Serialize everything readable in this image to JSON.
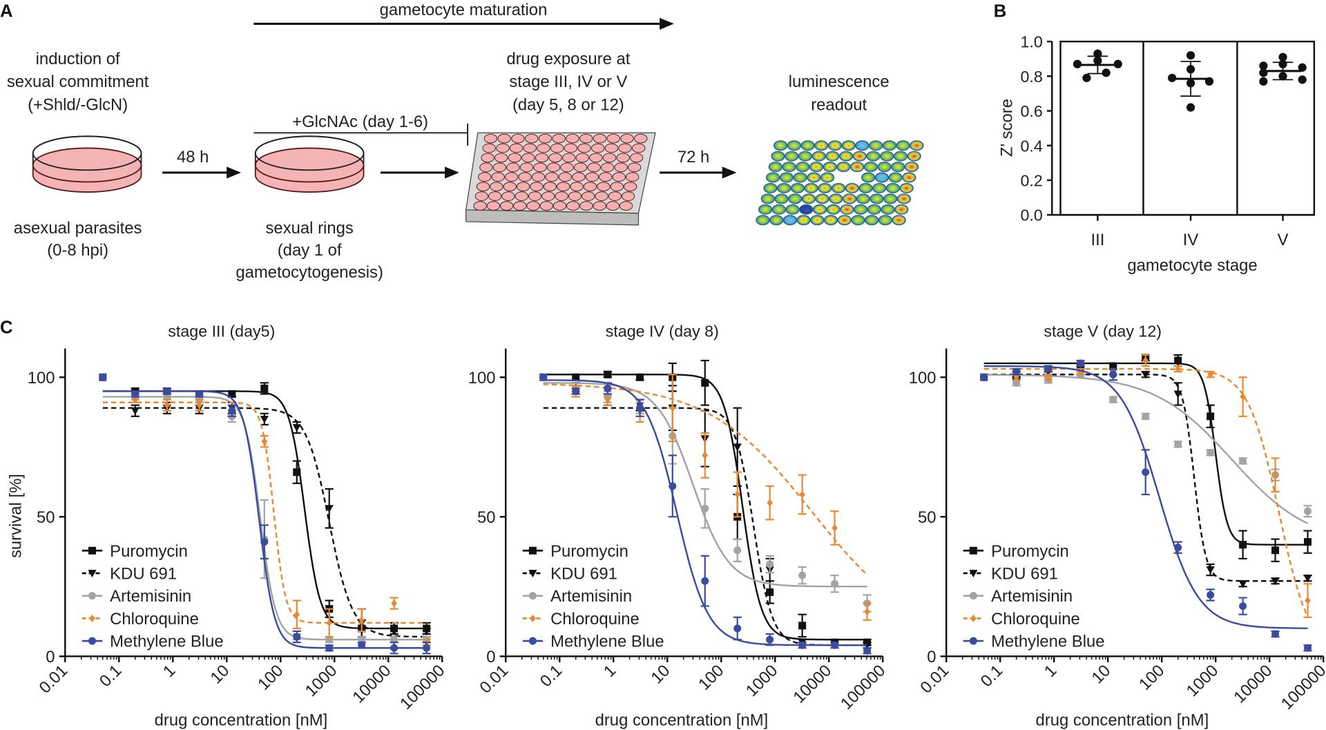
{
  "panel_labels": {
    "a": "A",
    "b": "B",
    "c": "C"
  },
  "panel_a": {
    "maturation_label": "gametocyte maturation",
    "induction_text": [
      "induction of",
      "sexual commitment",
      "(+Shld/-GlcN)"
    ],
    "asexual_text": [
      "asexual parasites",
      "(0-8 hpi)"
    ],
    "arrow_48h": "48 h",
    "glcnac_label": "+GlcNAc (day 1-6)",
    "rings_text": [
      "sexual rings",
      "(day 1 of",
      "gametocytogenesis)"
    ],
    "exposure_text": [
      "drug exposure at",
      "stage III, IV or V",
      "(day 5, 8 or 12)"
    ],
    "arrow_72h": "72 h",
    "readout_text": [
      "luminescence",
      "readout"
    ],
    "dish_color": "#f4b3b5",
    "plate_color": "#d9d9d9"
  },
  "chart_data": [
    {
      "id": "B",
      "type": "scatter",
      "ylabel": "Z' score",
      "xlabel": "gametocyte stage",
      "categories": [
        "III",
        "IV",
        "V"
      ],
      "ylim": [
        0,
        1.0
      ],
      "yticks": [
        "0.0",
        "0.2",
        "0.4",
        "0.6",
        "0.8",
        "1.0"
      ],
      "points": [
        [
          0.93,
          0.89,
          0.87,
          0.87,
          0.82,
          0.79
        ],
        [
          0.92,
          0.84,
          0.79,
          0.76,
          0.77,
          0.62
        ],
        [
          0.91,
          0.87,
          0.86,
          0.85,
          0.82,
          0.8,
          0.77,
          0.78
        ]
      ],
      "mean": [
        0.865,
        0.785,
        0.83
      ],
      "sd": [
        0.05,
        0.1,
        0.05
      ]
    },
    {
      "id": "C1",
      "type": "line",
      "title": "stage III (day5)",
      "xlabel": "drug concentration [nM]",
      "ylabel": "survival [%]",
      "xscale": "log",
      "xticks": [
        "0.01",
        "0.1",
        "1",
        "10",
        "100",
        "1000",
        "10000",
        "100000"
      ],
      "yticks": [
        "0",
        "50",
        "100"
      ],
      "ylim": [
        0,
        110
      ],
      "x": [
        0.05,
        0.2,
        0.78,
        3.1,
        12.5,
        50,
        200,
        800,
        3200,
        12800,
        51200
      ],
      "series": [
        {
          "name": "Puromycin",
          "values": [
            100,
            95,
            95,
            94,
            94,
            96,
            66,
            17,
            10,
            10,
            10
          ],
          "err": [
            0,
            1,
            1,
            1,
            1,
            2,
            4,
            3,
            3,
            2,
            2
          ],
          "fit": {
            "top": 95,
            "bottom": 10,
            "ec50": 280,
            "hill": 3
          }
        },
        {
          "name": "KDU 691",
          "values": [
            100,
            88,
            89,
            89,
            89,
            85,
            82,
            53,
            12,
            9,
            9
          ],
          "err": [
            0,
            2,
            2,
            2,
            2,
            2,
            2,
            7,
            5,
            1,
            1
          ],
          "fit": {
            "top": 89,
            "bottom": 7,
            "ec50": 800,
            "hill": 2
          }
        },
        {
          "name": "Artemisinin",
          "values": [
            100,
            93,
            93,
            92,
            86,
            42,
            7,
            6,
            6,
            6,
            6
          ],
          "err": [
            0,
            1,
            1,
            1,
            2,
            14,
            1,
            1,
            1,
            1,
            1
          ],
          "fit": {
            "top": 93,
            "bottom": 6,
            "ec50": 42,
            "hill": 3
          }
        },
        {
          "name": "Chloroquine",
          "values": [
            100,
            92,
            90,
            90,
            88,
            77,
            15,
            12,
            13,
            19,
            5
          ],
          "err": [
            0,
            1,
            2,
            2,
            2,
            2,
            5,
            5,
            4,
            2,
            1
          ],
          "fit": {
            "top": 91,
            "bottom": 12,
            "ec50": 75,
            "hill": 4
          }
        },
        {
          "name": "Methylene Blue",
          "values": [
            100,
            94,
            95,
            94,
            88,
            41,
            7,
            3,
            4,
            3,
            3
          ],
          "err": [
            0,
            1,
            1,
            1,
            2,
            6,
            2,
            1,
            1,
            2,
            2
          ],
          "fit": {
            "top": 95,
            "bottom": 3,
            "ec50": 40,
            "hill": 3
          }
        }
      ]
    },
    {
      "id": "C2",
      "type": "line",
      "title": "stage IV (day 8)",
      "xlabel": "drug concentration [nM]",
      "xscale": "log",
      "xticks": [
        "0.01",
        "0.1",
        "1",
        "10",
        "100",
        "1000",
        "10000",
        "100000"
      ],
      "yticks": [
        "0",
        "50",
        "100"
      ],
      "ylim": [
        0,
        110
      ],
      "x": [
        0.05,
        0.2,
        0.78,
        3.1,
        12.5,
        50,
        200,
        800,
        3200,
        12800,
        51200
      ],
      "series": [
        {
          "name": "Puromycin",
          "values": [
            100,
            100,
            101,
            100,
            100,
            98,
            50,
            23,
            11,
            5,
            5
          ],
          "err": [
            0,
            1,
            1,
            1,
            5,
            8,
            8,
            4,
            4,
            1,
            1
          ],
          "fit": {
            "top": 101,
            "bottom": 6,
            "ec50": 250,
            "hill": 2.5
          }
        },
        {
          "name": "KDU 691",
          "values": [
            100,
            96,
            92,
            90,
            89,
            78,
            75,
            31,
            5,
            5,
            4
          ],
          "err": [
            0,
            2,
            2,
            2,
            8,
            10,
            14,
            4,
            1,
            1,
            1
          ],
          "fit": {
            "top": 89,
            "bottom": 4,
            "ec50": 400,
            "hill": 2.5
          }
        },
        {
          "name": "Artemisinin",
          "values": [
            100,
            96,
            93,
            89,
            79,
            53,
            38,
            33,
            29,
            26,
            19
          ],
          "err": [
            0,
            1,
            2,
            2,
            10,
            7,
            4,
            3,
            3,
            3,
            3
          ],
          "fit": {
            "top": 98,
            "bottom": 25,
            "ec50": 30,
            "hill": 1.3
          }
        },
        {
          "name": "Chloroquine",
          "values": [
            100,
            95,
            92,
            88,
            89,
            72,
            58,
            55,
            58,
            46,
            16
          ],
          "err": [
            0,
            2,
            2,
            4,
            12,
            8,
            8,
            6,
            7,
            6,
            3
          ],
          "fit": {
            "top": 98,
            "bottom": 5,
            "ec50": 5000,
            "hill": 0.45
          }
        },
        {
          "name": "Methylene Blue",
          "values": [
            100,
            95,
            96,
            89,
            61,
            27,
            10,
            6,
            4,
            4,
            2
          ],
          "err": [
            0,
            1,
            2,
            3,
            11,
            9,
            4,
            2,
            1,
            1,
            1
          ],
          "fit": {
            "top": 99,
            "bottom": 4,
            "ec50": 15,
            "hill": 1.5
          }
        }
      ]
    },
    {
      "id": "C3",
      "type": "line",
      "title": "stage V (day 12)",
      "xlabel": "drug concentration [nM]",
      "xscale": "log",
      "xticks": [
        "0.01",
        "0.1",
        "1",
        "10",
        "100",
        "1000",
        "10000",
        "100000"
      ],
      "yticks": [
        "0",
        "50",
        "100"
      ],
      "ylim": [
        0,
        110
      ],
      "x": [
        0.05,
        0.2,
        0.78,
        3.1,
        12.5,
        50,
        200,
        800,
        3200,
        12800,
        51200
      ],
      "series": [
        {
          "name": "Puromycin",
          "values": [
            100,
            100,
            103,
            104,
            104,
            107,
            106,
            86,
            40,
            38,
            41
          ],
          "err": [
            0,
            1,
            1,
            1,
            1,
            1,
            2,
            4,
            5,
            4,
            4
          ],
          "fit": {
            "top": 105,
            "bottom": 40,
            "ec50": 1000,
            "hill": 4
          }
        },
        {
          "name": "KDU 691",
          "values": [
            100,
            101,
            102,
            102,
            102,
            101,
            94,
            31,
            26,
            27,
            28
          ],
          "err": [
            0,
            1,
            1,
            1,
            1,
            1,
            4,
            2,
            1,
            1,
            1
          ],
          "fit": {
            "top": 101,
            "bottom": 27,
            "ec50": 400,
            "hill": 4
          }
        },
        {
          "name": "Artemisinin",
          "values": [
            100,
            98,
            99,
            101,
            92,
            86,
            76,
            73,
            70,
            65,
            52
          ],
          "err": [
            0,
            1,
            1,
            1,
            1,
            1,
            1,
            1,
            1,
            2,
            2
          ],
          "fit": {
            "top": 101,
            "bottom": 40,
            "ec50": 2000,
            "hill": 0.6
          }
        },
        {
          "name": "Chloroquine",
          "values": [
            100,
            100,
            100,
            102,
            102,
            106,
            103,
            101,
            93,
            65,
            20
          ],
          "err": [
            0,
            1,
            1,
            1,
            1,
            2,
            1,
            1,
            7,
            6,
            6
          ],
          "fit": {
            "top": 103,
            "bottom": 0,
            "ec50": 15000,
            "hill": 1.5
          }
        },
        {
          "name": "Methylene Blue",
          "values": [
            100,
            102,
            103,
            105,
            101,
            66,
            39,
            22,
            18,
            8,
            3
          ],
          "err": [
            0,
            1,
            1,
            1,
            2,
            8,
            2,
            2,
            3,
            1,
            1
          ],
          "fit": {
            "top": 104,
            "bottom": 10,
            "ec50": 90,
            "hill": 1.2
          }
        }
      ]
    }
  ],
  "series_style": {
    "Puromycin": {
      "color": "#111111",
      "dash": false,
      "marker": "square"
    },
    "KDU 691": {
      "color": "#111111",
      "dash": true,
      "marker": "triangle-down"
    },
    "Artemisinin": {
      "color": "#a3a3a3",
      "dash": false,
      "marker": "circle"
    },
    "Chloroquine": {
      "color": "#e8892f",
      "dash": true,
      "marker": "diamond"
    },
    "Methylene Blue": {
      "color": "#3a4c9f",
      "dash": false,
      "marker": "circle"
    }
  }
}
